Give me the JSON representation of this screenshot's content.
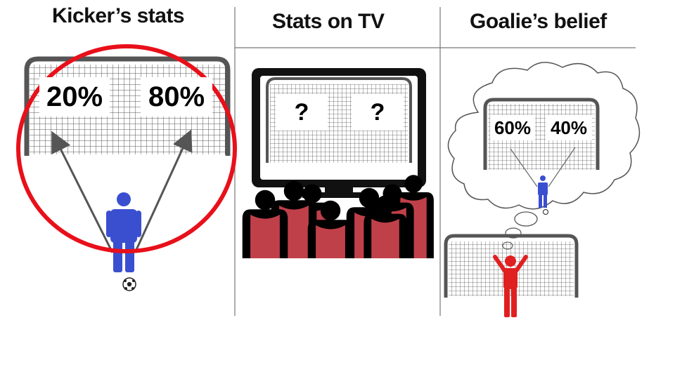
{
  "panels": [
    {
      "title": "Kicker’s stats",
      "left_value": "20%",
      "right_value": "80%"
    },
    {
      "title": "Stats on TV",
      "left_value": "?",
      "right_value": "?"
    },
    {
      "title": "Goalie’s belief",
      "left_value": "60%",
      "right_value": "40%"
    }
  ],
  "colors": {
    "kicker": "#3a4fd0",
    "goalie": "#e02020",
    "highlight_circle": "#e8101a",
    "crowd_shirt": "#c0404a",
    "goal_frame": "#555555"
  }
}
